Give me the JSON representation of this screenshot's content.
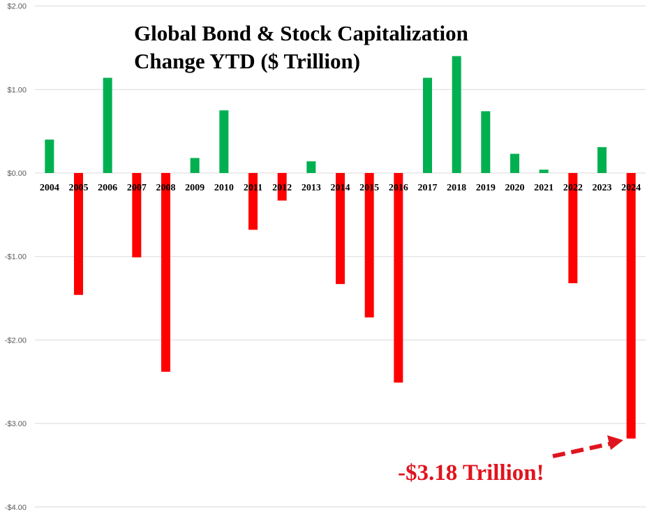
{
  "chart_data": {
    "type": "bar",
    "title_lines": [
      "Global Bond & Stock Capitalization",
      "Change YTD ($ Trillion)"
    ],
    "xlabel": "",
    "ylabel": "",
    "ylim": [
      -4,
      2
    ],
    "yticks": [
      2,
      1,
      0,
      -1,
      -2,
      -3,
      -4
    ],
    "ytick_labels": [
      "$2.00",
      "$1.00",
      "$0.00",
      "-$1.00",
      "-$2.00",
      "-$3.00",
      "-$4.00"
    ],
    "grid": true,
    "categories": [
      "2004",
      "2005",
      "2006",
      "2007",
      "2008",
      "2009",
      "2010",
      "2011",
      "2012",
      "2013",
      "2014",
      "2015",
      "2016",
      "2017",
      "2018",
      "2019",
      "2020",
      "2021",
      "2022",
      "2023",
      "2024"
    ],
    "values": [
      0.4,
      -1.46,
      1.14,
      -1.01,
      -2.38,
      0.18,
      0.75,
      -0.68,
      -0.33,
      0.14,
      -1.33,
      -1.73,
      -2.51,
      1.14,
      1.4,
      0.74,
      0.23,
      0.04,
      -1.32,
      0.31,
      -3.18
    ],
    "colors": {
      "positive": "#00b050",
      "negative": "#ff0000",
      "annotation": "#e0141e",
      "grid": "#d9d9d9"
    },
    "annotation": {
      "text": "-$3.18 Trillion!",
      "target_category": "2024",
      "arrow": "dashed"
    }
  }
}
